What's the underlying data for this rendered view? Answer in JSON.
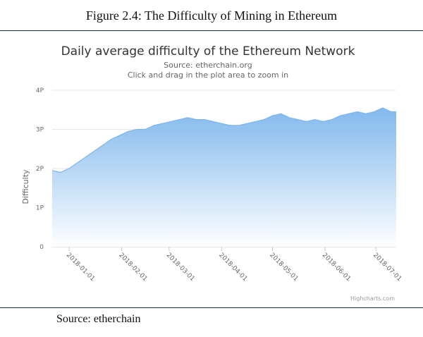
{
  "figure": {
    "caption": "Figure 2.4: The Difficulty of Mining in Ethereum",
    "source": "Source: etherchain"
  },
  "chart_data": {
    "type": "area",
    "title": "Daily average difficulty of the Ethereum Network",
    "subtitle": "Source: etherchain.org",
    "subtitle2": "Click and drag in the plot area to zoom in",
    "ylabel": "Difficulty",
    "xlabel": "",
    "y_ticks": [
      "0",
      "1P",
      "2P",
      "3P",
      "4P"
    ],
    "ylim": [
      0,
      4
    ],
    "x_ticks": [
      "2018-01-01",
      "2018-02-01",
      "2018-03-01",
      "2018-04-01",
      "2018-05-01",
      "2018-06-01",
      "2018-07-01"
    ],
    "xlim": [
      -10,
      193
    ],
    "grid": true,
    "legend": "none",
    "credits": "Highcharts.com",
    "colors": {
      "line": "#7cb5ec",
      "area_top": "#7cb5ec",
      "area_bottom": "#ffffff",
      "grid": "#e6e6e6"
    },
    "series": [
      {
        "x": [
          -10,
          -5,
          0,
          5,
          10,
          15,
          20,
          25,
          30,
          35,
          40,
          45,
          50,
          55,
          60,
          65,
          70,
          75,
          80,
          85,
          90,
          95,
          100,
          105,
          110,
          115,
          120,
          125,
          130,
          135,
          140,
          145,
          150,
          155,
          160,
          165,
          170,
          175,
          180,
          185,
          190,
          193
        ],
        "values": [
          1.95,
          1.9,
          2.0,
          2.15,
          2.3,
          2.45,
          2.6,
          2.75,
          2.85,
          2.95,
          3.0,
          3.0,
          3.1,
          3.15,
          3.2,
          3.25,
          3.3,
          3.25,
          3.25,
          3.2,
          3.15,
          3.1,
          3.1,
          3.15,
          3.2,
          3.25,
          3.35,
          3.4,
          3.3,
          3.25,
          3.2,
          3.25,
          3.2,
          3.25,
          3.35,
          3.4,
          3.45,
          3.4,
          3.45,
          3.55,
          3.45,
          3.45
        ]
      }
    ]
  }
}
